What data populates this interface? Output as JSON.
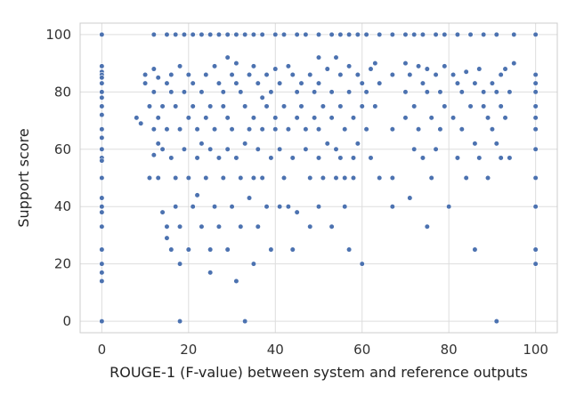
{
  "chart_data": {
    "type": "scatter",
    "title": "",
    "xlabel": "ROUGE-1 (F-value) between system and reference outputs",
    "ylabel": "Support score",
    "xlim": [
      -5,
      105
    ],
    "ylim": [
      -4,
      104
    ],
    "xticks": [
      0,
      20,
      40,
      60,
      80,
      100
    ],
    "yticks": [
      0,
      20,
      40,
      60,
      80,
      100
    ],
    "grid": true,
    "marker_color": "#4c72b0",
    "background": "#ffffff",
    "grid_color": "#dddddd",
    "series": [
      {
        "points": [
          [
            0,
            100
          ],
          [
            0,
            89
          ],
          [
            0,
            87
          ],
          [
            0,
            86
          ],
          [
            0,
            85
          ],
          [
            0,
            83
          ],
          [
            0,
            80
          ],
          [
            0,
            78
          ],
          [
            0,
            75
          ],
          [
            0,
            72
          ],
          [
            0,
            67
          ],
          [
            0,
            64
          ],
          [
            0,
            60
          ],
          [
            0,
            57
          ],
          [
            0,
            56
          ],
          [
            0,
            50
          ],
          [
            0,
            43
          ],
          [
            0,
            40
          ],
          [
            0,
            38
          ],
          [
            0,
            33
          ],
          [
            0,
            25
          ],
          [
            0,
            20
          ],
          [
            0,
            17
          ],
          [
            0,
            14
          ],
          [
            0,
            0
          ],
          [
            8,
            71
          ],
          [
            9,
            69
          ],
          [
            10,
            86
          ],
          [
            10,
            83
          ],
          [
            11,
            75
          ],
          [
            11,
            50
          ],
          [
            12,
            88
          ],
          [
            12,
            80
          ],
          [
            12,
            67
          ],
          [
            12,
            58
          ],
          [
            13,
            85
          ],
          [
            13,
            71
          ],
          [
            13,
            62
          ],
          [
            13,
            50
          ],
          [
            14,
            75
          ],
          [
            14,
            60
          ],
          [
            14,
            38
          ],
          [
            15,
            83
          ],
          [
            15,
            67
          ],
          [
            15,
            33
          ],
          [
            15,
            29
          ],
          [
            16,
            86
          ],
          [
            16,
            80
          ],
          [
            16,
            57
          ],
          [
            16,
            25
          ],
          [
            17,
            75
          ],
          [
            17,
            50
          ],
          [
            17,
            40
          ],
          [
            18,
            89
          ],
          [
            18,
            67
          ],
          [
            18,
            33
          ],
          [
            18,
            20
          ],
          [
            18,
            0
          ],
          [
            19,
            80
          ],
          [
            19,
            60
          ],
          [
            20,
            86
          ],
          [
            20,
            71
          ],
          [
            20,
            50
          ],
          [
            20,
            25
          ],
          [
            21,
            83
          ],
          [
            21,
            75
          ],
          [
            21,
            40
          ],
          [
            22,
            67
          ],
          [
            22,
            57
          ],
          [
            22,
            44
          ],
          [
            23,
            80
          ],
          [
            23,
            62
          ],
          [
            23,
            33
          ],
          [
            24,
            86
          ],
          [
            24,
            71
          ],
          [
            24,
            50
          ],
          [
            25,
            75
          ],
          [
            25,
            60
          ],
          [
            25,
            25
          ],
          [
            25,
            17
          ],
          [
            26,
            89
          ],
          [
            26,
            67
          ],
          [
            26,
            40
          ],
          [
            27,
            83
          ],
          [
            27,
            57
          ],
          [
            27,
            33
          ],
          [
            28,
            80
          ],
          [
            28,
            75
          ],
          [
            28,
            50
          ],
          [
            29,
            92
          ],
          [
            29,
            71
          ],
          [
            29,
            60
          ],
          [
            29,
            25
          ],
          [
            30,
            86
          ],
          [
            30,
            67
          ],
          [
            30,
            40
          ],
          [
            31,
            90
          ],
          [
            31,
            83
          ],
          [
            31,
            57
          ],
          [
            31,
            14
          ],
          [
            32,
            80
          ],
          [
            32,
            50
          ],
          [
            32,
            33
          ],
          [
            33,
            75
          ],
          [
            33,
            62
          ],
          [
            33,
            0
          ],
          [
            34,
            86
          ],
          [
            34,
            67
          ],
          [
            34,
            43
          ],
          [
            35,
            89
          ],
          [
            35,
            71
          ],
          [
            35,
            50
          ],
          [
            35,
            20
          ],
          [
            36,
            83
          ],
          [
            36,
            60
          ],
          [
            36,
            33
          ],
          [
            37,
            78
          ],
          [
            37,
            67
          ],
          [
            37,
            50
          ],
          [
            38,
            86
          ],
          [
            38,
            75
          ],
          [
            38,
            40
          ],
          [
            39,
            80
          ],
          [
            39,
            57
          ],
          [
            39,
            25
          ],
          [
            40,
            88
          ],
          [
            40,
            71
          ],
          [
            40,
            67
          ],
          [
            41,
            83
          ],
          [
            41,
            60
          ],
          [
            41,
            40
          ],
          [
            42,
            75
          ],
          [
            42,
            50
          ],
          [
            43,
            89
          ],
          [
            43,
            67
          ],
          [
            43,
            40
          ],
          [
            44,
            86
          ],
          [
            44,
            57
          ],
          [
            44,
            25
          ],
          [
            45,
            80
          ],
          [
            45,
            71
          ],
          [
            45,
            38
          ],
          [
            46,
            83
          ],
          [
            46,
            75
          ],
          [
            47,
            67
          ],
          [
            47,
            60
          ],
          [
            48,
            86
          ],
          [
            48,
            50
          ],
          [
            48,
            33
          ],
          [
            49,
            80
          ],
          [
            49,
            71
          ],
          [
            50,
            92
          ],
          [
            50,
            83
          ],
          [
            50,
            67
          ],
          [
            50,
            57
          ],
          [
            50,
            40
          ],
          [
            51,
            75
          ],
          [
            51,
            50
          ],
          [
            52,
            88
          ],
          [
            52,
            62
          ],
          [
            53,
            80
          ],
          [
            53,
            71
          ],
          [
            53,
            33
          ],
          [
            54,
            92
          ],
          [
            54,
            60
          ],
          [
            54,
            50
          ],
          [
            55,
            86
          ],
          [
            55,
            75
          ],
          [
            55,
            57
          ],
          [
            56,
            67
          ],
          [
            56,
            50
          ],
          [
            56,
            40
          ],
          [
            57,
            89
          ],
          [
            57,
            80
          ],
          [
            57,
            25
          ],
          [
            58,
            71
          ],
          [
            58,
            57
          ],
          [
            58,
            50
          ],
          [
            59,
            86
          ],
          [
            59,
            62
          ],
          [
            60,
            83
          ],
          [
            60,
            75
          ],
          [
            60,
            20
          ],
          [
            61,
            80
          ],
          [
            61,
            67
          ],
          [
            62,
            88
          ],
          [
            62,
            57
          ],
          [
            63,
            90
          ],
          [
            63,
            75
          ],
          [
            64,
            83
          ],
          [
            64,
            50
          ],
          [
            67,
            86
          ],
          [
            67,
            67
          ],
          [
            67,
            50
          ],
          [
            67,
            40
          ],
          [
            70,
            90
          ],
          [
            70,
            80
          ],
          [
            70,
            71
          ],
          [
            71,
            86
          ],
          [
            71,
            43
          ],
          [
            72,
            75
          ],
          [
            72,
            60
          ],
          [
            73,
            89
          ],
          [
            73,
            67
          ],
          [
            74,
            83
          ],
          [
            74,
            57
          ],
          [
            75,
            88
          ],
          [
            75,
            80
          ],
          [
            75,
            33
          ],
          [
            76,
            71
          ],
          [
            76,
            50
          ],
          [
            77,
            86
          ],
          [
            77,
            60
          ],
          [
            78,
            80
          ],
          [
            78,
            67
          ],
          [
            79,
            89
          ],
          [
            79,
            75
          ],
          [
            80,
            40
          ],
          [
            81,
            86
          ],
          [
            81,
            71
          ],
          [
            82,
            83
          ],
          [
            82,
            57
          ],
          [
            83,
            80
          ],
          [
            83,
            67
          ],
          [
            84,
            87
          ],
          [
            84,
            50
          ],
          [
            85,
            75
          ],
          [
            86,
            83
          ],
          [
            86,
            62
          ],
          [
            86,
            25
          ],
          [
            87,
            88
          ],
          [
            87,
            57
          ],
          [
            88,
            80
          ],
          [
            88,
            75
          ],
          [
            89,
            71
          ],
          [
            89,
            50
          ],
          [
            90,
            83
          ],
          [
            90,
            67
          ],
          [
            91,
            80
          ],
          [
            91,
            62
          ],
          [
            91,
            0
          ],
          [
            92,
            86
          ],
          [
            92,
            75
          ],
          [
            92,
            57
          ],
          [
            93,
            88
          ],
          [
            93,
            71
          ],
          [
            94,
            80
          ],
          [
            94,
            57
          ],
          [
            95,
            90
          ],
          [
            100,
            86
          ],
          [
            100,
            83
          ],
          [
            100,
            80
          ],
          [
            100,
            75
          ],
          [
            100,
            71
          ],
          [
            100,
            67
          ],
          [
            100,
            60
          ],
          [
            100,
            50
          ],
          [
            100,
            40
          ],
          [
            100,
            25
          ],
          [
            100,
            20
          ],
          [
            12,
            100
          ],
          [
            15,
            100
          ],
          [
            17,
            100
          ],
          [
            19,
            100
          ],
          [
            21,
            100
          ],
          [
            23,
            100
          ],
          [
            25,
            100
          ],
          [
            27,
            100
          ],
          [
            29,
            100
          ],
          [
            31,
            100
          ],
          [
            33,
            100
          ],
          [
            35,
            100
          ],
          [
            37,
            100
          ],
          [
            40,
            100
          ],
          [
            42,
            100
          ],
          [
            45,
            100
          ],
          [
            47,
            100
          ],
          [
            50,
            100
          ],
          [
            53,
            100
          ],
          [
            55,
            100
          ],
          [
            57,
            100
          ],
          [
            59,
            100
          ],
          [
            61,
            100
          ],
          [
            64,
            100
          ],
          [
            67,
            100
          ],
          [
            70,
            100
          ],
          [
            72,
            100
          ],
          [
            74,
            100
          ],
          [
            77,
            100
          ],
          [
            79,
            100
          ],
          [
            82,
            100
          ],
          [
            85,
            100
          ],
          [
            88,
            100
          ],
          [
            91,
            100
          ],
          [
            95,
            100
          ],
          [
            100,
            100
          ]
        ]
      }
    ]
  }
}
